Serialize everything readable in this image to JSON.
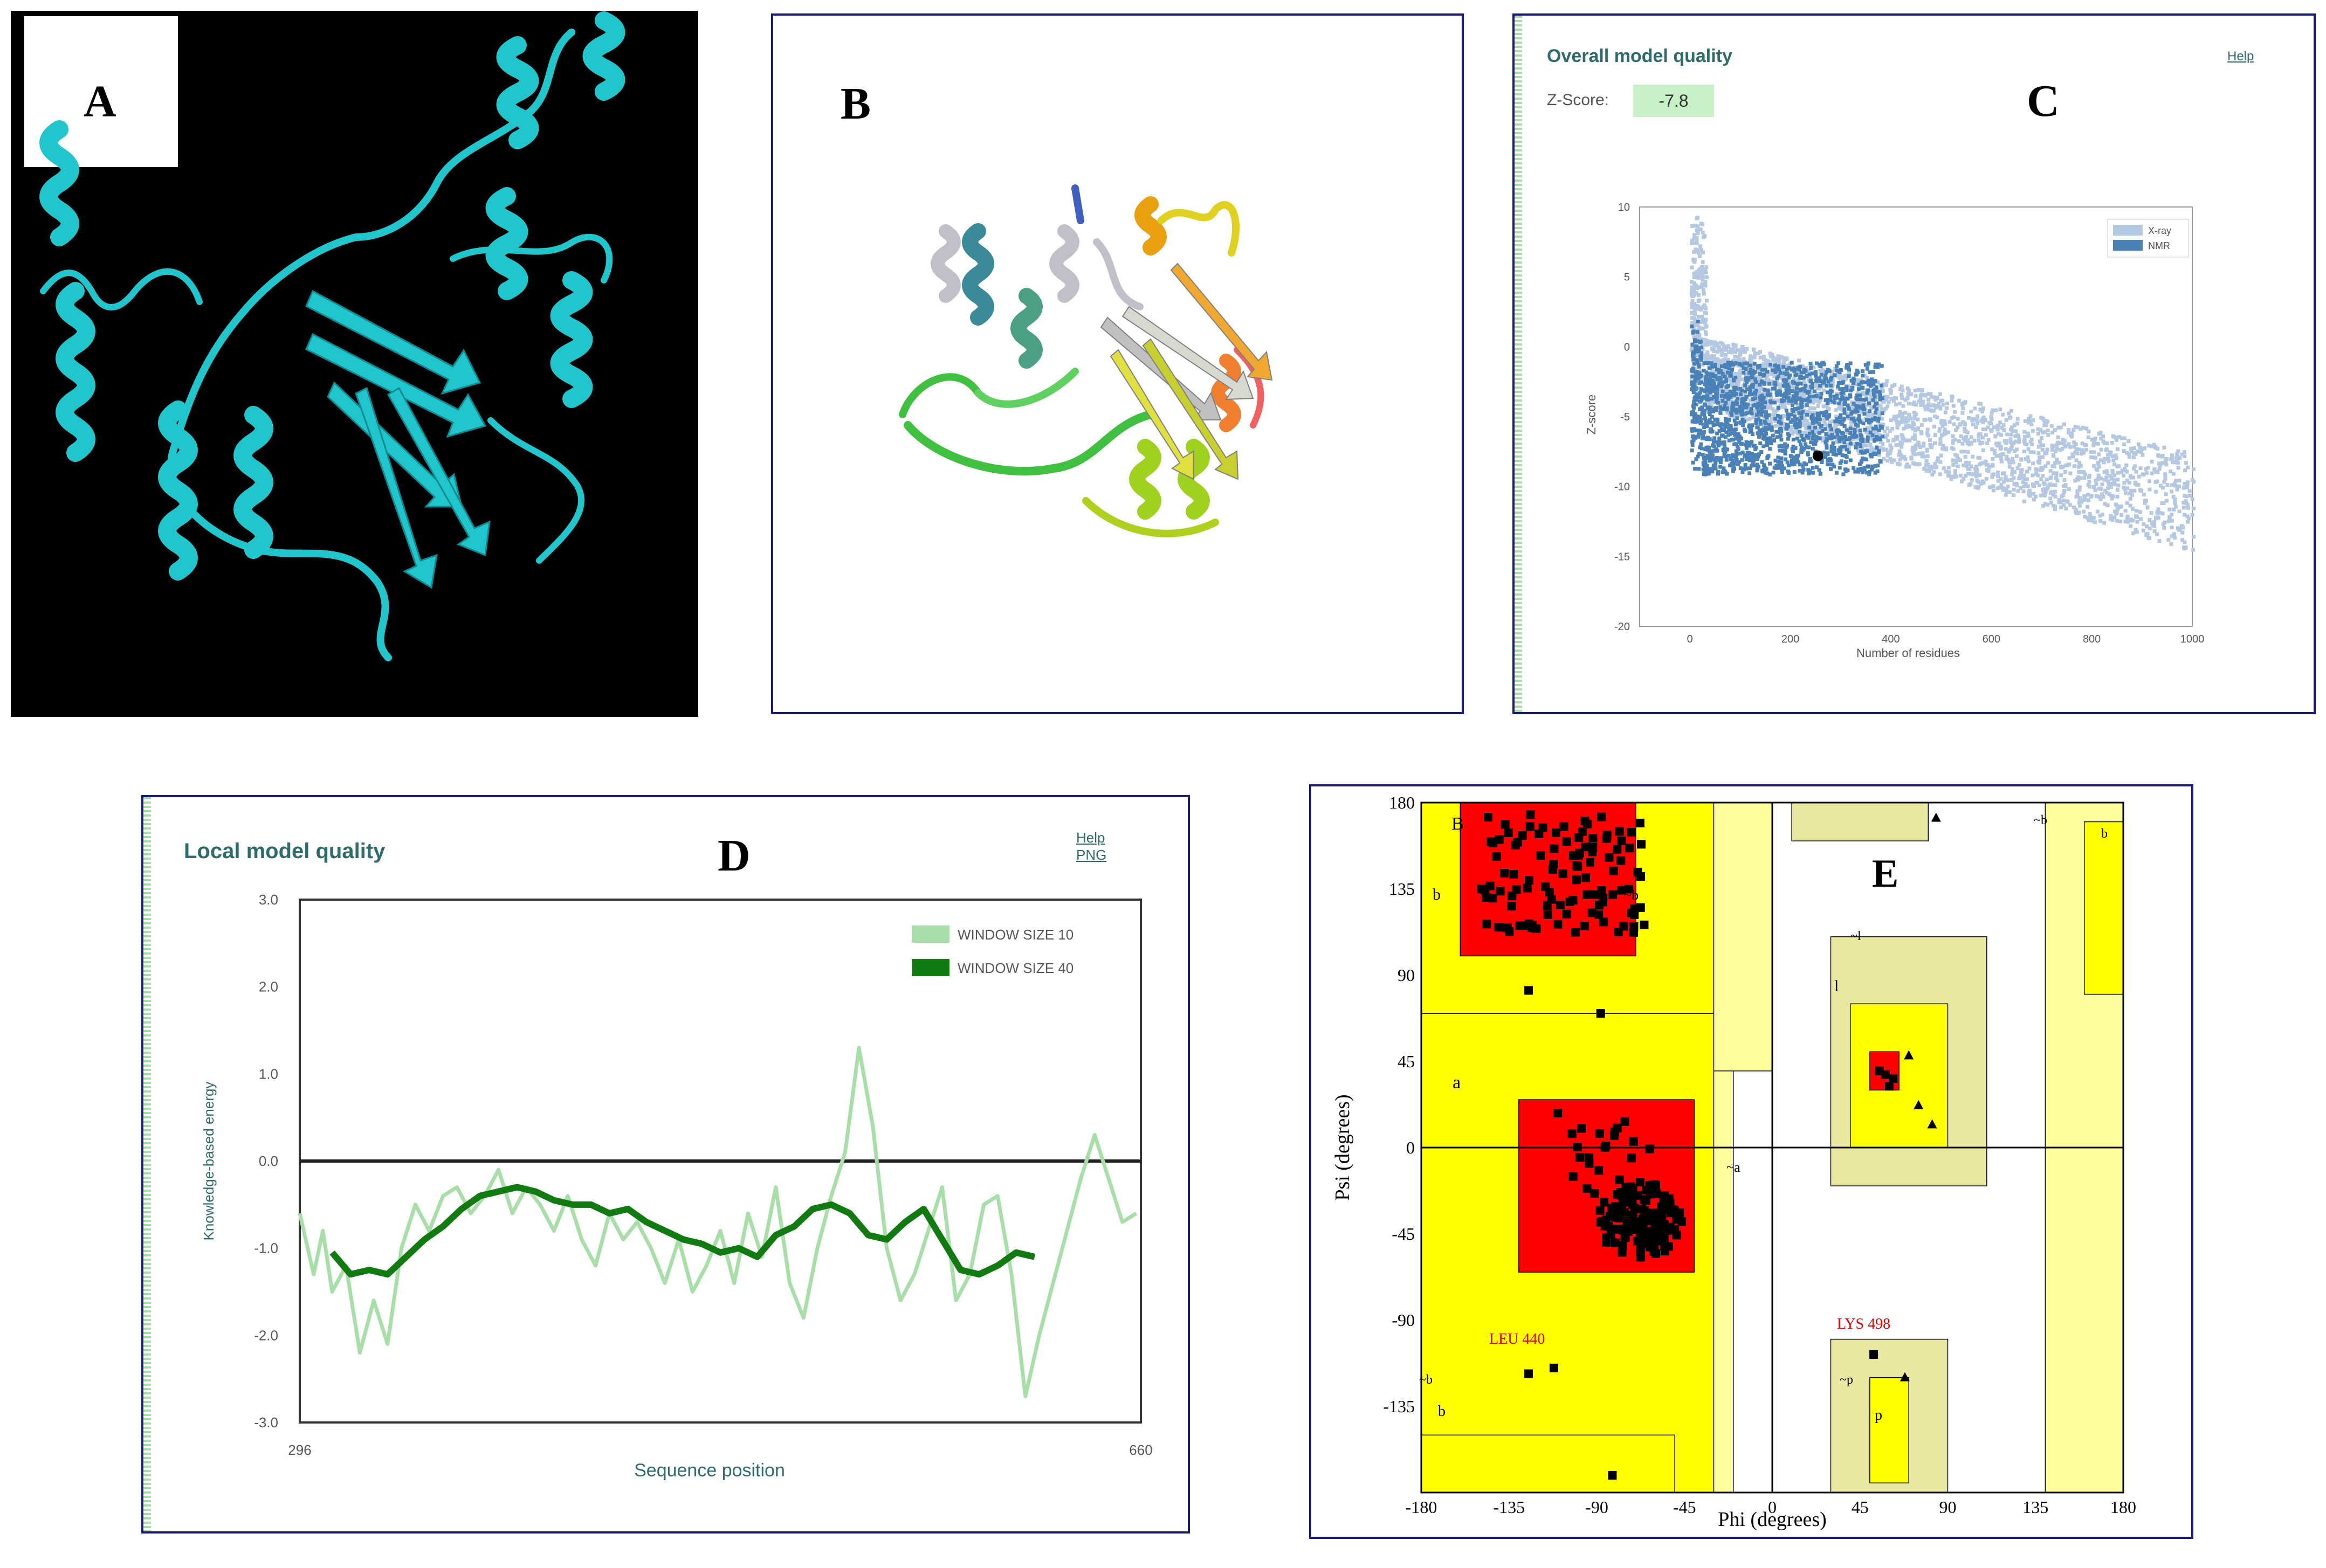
{
  "panels": {
    "A": {
      "label": "A"
    },
    "B": {
      "label": "B"
    },
    "C": {
      "label": "C",
      "title": "Overall model quality",
      "help": "Help",
      "zscore_label": "Z-Score:",
      "zscore_value": "-7.8"
    },
    "D": {
      "label": "D",
      "title": "Local model quality",
      "help": "Help",
      "png": "PNG"
    },
    "E": {
      "label": "E",
      "region_labels": [
        "B",
        "b",
        "~b",
        "a",
        "~a",
        "l",
        "~l",
        "b",
        "~b",
        "~p",
        "p",
        "~b",
        "b"
      ],
      "residue_labels": [
        "LEU 440",
        "LYS 498"
      ]
    }
  },
  "colors": {
    "cyan": "#21c6cc",
    "xray": "#b4c8e2",
    "nmr": "#4a82b8",
    "window10": "#a8dfa8",
    "window40": "#117a11",
    "favored": "#ff0000",
    "allowed": "#ffff00",
    "generous": "#ffffa0",
    "genA": "#e8e8a0",
    "border": "#1a1a7a"
  },
  "chart_data": [
    {
      "type": "scatter",
      "panel": "C",
      "title": "Overall model quality",
      "xlabel": "Number of residues",
      "ylabel": "Z-score",
      "xlim": [
        -100,
        1000
      ],
      "ylim": [
        -20,
        10
      ],
      "xticks": [
        0,
        200,
        400,
        600,
        800,
        1000
      ],
      "yticks": [
        10,
        5,
        0,
        -5,
        -10,
        -15,
        -20
      ],
      "legend": [
        "X-ray",
        "NMR"
      ],
      "legend_placement": "top-right",
      "series": [
        {
          "name": "X-ray",
          "description": "dense cloud declining from about 0 near 0 residues to about -12 at 1000 residues"
        },
        {
          "name": "NMR",
          "description": "dense band from 0 to about 350 residues, z-score 0 to -9"
        }
      ],
      "highlight_point": {
        "x": 255,
        "y": -7.8
      }
    },
    {
      "type": "line",
      "panel": "D",
      "title": "Local model quality",
      "xlabel": "Sequence position",
      "ylabel": "Knowledge-based energy",
      "xlim": [
        296,
        660
      ],
      "ylim": [
        -3.0,
        3.0
      ],
      "xticks": [
        "296",
        "660"
      ],
      "yticks": [
        "3.0",
        "2.0",
        "1.0",
        "0.0",
        "-1.0",
        "-2.0",
        "-3.0"
      ],
      "legend_placement": "top-right",
      "series": [
        {
          "name": "WINDOW SIZE 10",
          "x": [
            296,
            302,
            306,
            310,
            316,
            322,
            328,
            334,
            340,
            346,
            352,
            358,
            364,
            370,
            376,
            382,
            388,
            394,
            400,
            406,
            412,
            418,
            424,
            430,
            436,
            442,
            448,
            454,
            460,
            466,
            472,
            478,
            484,
            490,
            496,
            502,
            508,
            514,
            520,
            526,
            532,
            538,
            544,
            550,
            556,
            562,
            568,
            574,
            580,
            586,
            592,
            598,
            604,
            610,
            616,
            622,
            628,
            634,
            640,
            646,
            652,
            658
          ],
          "values": [
            -0.6,
            -1.3,
            -0.8,
            -1.5,
            -1.2,
            -2.2,
            -1.6,
            -2.1,
            -1.0,
            -0.5,
            -0.8,
            -0.4,
            -0.3,
            -0.6,
            -0.4,
            -0.1,
            -0.6,
            -0.3,
            -0.5,
            -0.8,
            -0.4,
            -0.9,
            -1.2,
            -0.6,
            -0.9,
            -0.7,
            -1.0,
            -1.4,
            -0.9,
            -1.5,
            -1.2,
            -0.8,
            -1.4,
            -0.6,
            -1.1,
            -0.3,
            -1.4,
            -1.8,
            -1.0,
            -0.4,
            0.1,
            1.3,
            0.4,
            -1.0,
            -1.6,
            -1.3,
            -0.8,
            -0.3,
            -1.6,
            -1.3,
            -0.5,
            -0.4,
            -1.3,
            -2.7,
            -2.0,
            -1.4,
            -0.8,
            -0.2,
            0.3,
            -0.2,
            -0.7,
            -0.6
          ]
        },
        {
          "name": "WINDOW SIZE 40",
          "x": [
            310,
            318,
            326,
            334,
            342,
            350,
            358,
            366,
            374,
            382,
            390,
            398,
            406,
            414,
            422,
            430,
            438,
            446,
            454,
            462,
            470,
            478,
            486,
            494,
            502,
            510,
            518,
            526,
            534,
            542,
            550,
            558,
            566,
            574,
            582,
            590,
            598,
            606,
            614
          ],
          "values": [
            -1.05,
            -1.3,
            -1.25,
            -1.3,
            -1.1,
            -0.9,
            -0.75,
            -0.55,
            -0.4,
            -0.35,
            -0.3,
            -0.35,
            -0.45,
            -0.5,
            -0.5,
            -0.6,
            -0.55,
            -0.7,
            -0.8,
            -0.9,
            -0.95,
            -1.05,
            -1.0,
            -1.1,
            -0.85,
            -0.75,
            -0.55,
            -0.5,
            -0.6,
            -0.85,
            -0.9,
            -0.7,
            -0.55,
            -0.9,
            -1.25,
            -1.3,
            -1.2,
            -1.05,
            -1.1
          ]
        }
      ]
    },
    {
      "type": "scatter",
      "panel": "E",
      "title": "Ramachandran plot",
      "xlabel": "Phi (degrees)",
      "ylabel": "Psi (degrees)",
      "xlim": [
        -180,
        180
      ],
      "ylim": [
        -180,
        180
      ],
      "xticks": [
        "-180",
        "-135",
        "-90",
        "-45",
        "0",
        "45",
        "90",
        "135",
        "180"
      ],
      "yticks": [
        "180",
        "135",
        "90",
        "45",
        "0",
        "-45",
        "-90",
        "-135"
      ],
      "description": "Most residues cluster in beta region (phi -150 to -60, psi 110 to 175) and alpha region (phi -100 to -50, psi -60 to 10); few in left-handed helix region near phi 60, psi 40; outliers LEU 440 and LYS 498."
    }
  ]
}
